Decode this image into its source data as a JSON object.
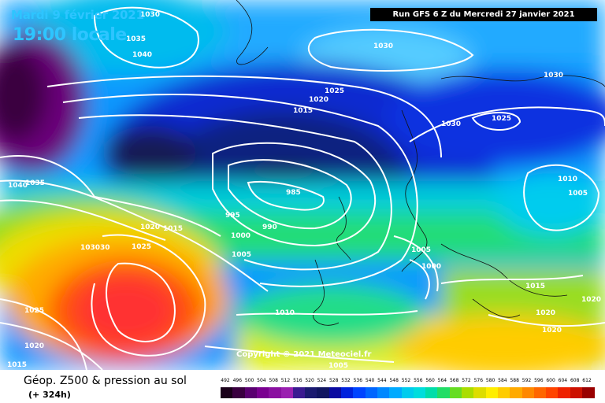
{
  "header": {
    "date": "Mardi 9 février 2021",
    "time": "19:00 locale",
    "run": "Run GFS 6 Z du Mercredi 27 janvier 2021"
  },
  "footer": {
    "title": "Géop. Z500 & pression au sol",
    "forecast_hours": "(+ 324h)",
    "copyright": "Copyright © 2021 Meteociel.fr"
  },
  "legend_scale": {
    "values": [
      "492",
      "496",
      "500",
      "504",
      "508",
      "512",
      "516",
      "520",
      "524",
      "528",
      "532",
      "536",
      "540",
      "544",
      "548",
      "552",
      "556",
      "560",
      "564",
      "568",
      "572",
      "576",
      "580",
      "584",
      "588",
      "592",
      "596",
      "600",
      "604",
      "608",
      "612"
    ],
    "colors": [
      "#1a001a",
      "#3a0040",
      "#5a0070",
      "#7a0090",
      "#8a10a0",
      "#9a20b0",
      "#3a1a90",
      "#1a1a70",
      "#101560",
      "#0a0aa0",
      "#0022dd",
      "#0044ff",
      "#0066ff",
      "#0088ff",
      "#00aaff",
      "#00ccee",
      "#00dddd",
      "#00ddaa",
      "#22dd66",
      "#66dd22",
      "#aadd00",
      "#dddd00",
      "#ffee00",
      "#ffcc00",
      "#ffaa00",
      "#ff8800",
      "#ff6600",
      "#ff4400",
      "#ee2200",
      "#cc1100",
      "#990000"
    ]
  },
  "isobar_labels": [
    "1030",
    "1035",
    "1040",
    "1035",
    "1040",
    "1030",
    "1025",
    "1020",
    "1015",
    "1030",
    "1025",
    "1030",
    "1010",
    "1005",
    "985",
    "995",
    "990",
    "1000",
    "1005",
    "1020",
    "1015",
    "1025",
    "103030",
    "1005",
    "1000",
    "1015",
    "1020",
    "1020",
    "1020",
    "1010",
    "1025",
    "1020",
    "1015",
    "1005"
  ]
}
